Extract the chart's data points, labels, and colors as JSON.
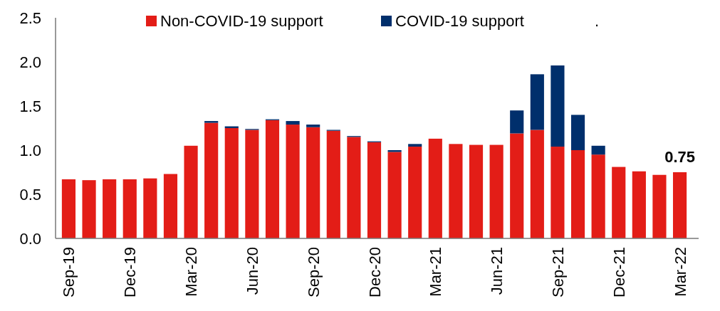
{
  "chart_data": {
    "type": "bar",
    "stacked": true,
    "legend": "top",
    "grid": false,
    "categories": [
      "Sep-19",
      null,
      null,
      "Dec-19",
      null,
      null,
      "Mar-20",
      null,
      null,
      "Jun-20",
      null,
      null,
      "Sep-20",
      null,
      null,
      "Dec-20",
      null,
      null,
      "Mar-21",
      null,
      null,
      "Jun-21",
      null,
      null,
      "Sep-21",
      null,
      null,
      "Dec-21",
      null,
      null,
      "Mar-22"
    ],
    "series": [
      {
        "name": "Non-COVID-19 support",
        "color": "#e31d17",
        "values": [
          0.67,
          0.66,
          0.67,
          0.67,
          0.68,
          0.73,
          1.05,
          1.31,
          1.25,
          1.23,
          1.34,
          1.29,
          1.26,
          1.22,
          1.15,
          1.09,
          0.98,
          1.04,
          1.13,
          1.07,
          1.06,
          1.06,
          1.19,
          1.23,
          1.04,
          1.0,
          0.95,
          0.81,
          0.76,
          0.72,
          0.75
        ]
      },
      {
        "name": "COVID-19 support",
        "color": "#002f6c",
        "values": [
          null,
          null,
          null,
          null,
          null,
          null,
          null,
          0.02,
          0.02,
          0.01,
          0.01,
          0.04,
          0.03,
          0.01,
          0.01,
          0.01,
          0.02,
          0.03,
          null,
          null,
          null,
          null,
          0.26,
          0.63,
          0.92,
          0.4,
          0.1,
          null,
          null,
          null,
          null
        ]
      }
    ],
    "totals": [
      null,
      null,
      null,
      null,
      null,
      null,
      null,
      null,
      null,
      null,
      null,
      null,
      null,
      null,
      null,
      null,
      null,
      null,
      null,
      null,
      null,
      null,
      null,
      null,
      null,
      null,
      null,
      null,
      null,
      null,
      "0.75"
    ],
    "ylim": [
      0,
      2.5
    ],
    "yticks": [
      {
        "value": 0,
        "label": "0.0"
      },
      {
        "value": 0.5,
        "label": "0.5"
      },
      {
        "value": 1,
        "label": "1.0"
      },
      {
        "value": 1.5,
        "label": "1.5"
      },
      {
        "value": 2,
        "label": "2.0"
      },
      {
        "value": 2.5,
        "label": "2.5"
      }
    ],
    "annotations": [
      "."
    ]
  }
}
